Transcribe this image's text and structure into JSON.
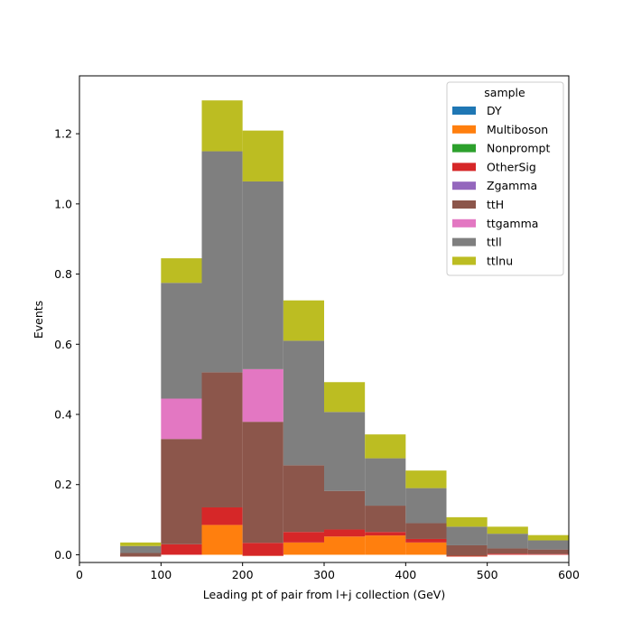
{
  "chart_data": {
    "type": "bar",
    "stacked": true,
    "histogram": true,
    "bin_edges": [
      50,
      100,
      150,
      200,
      250,
      300,
      350,
      400,
      450,
      500,
      550,
      600
    ],
    "xlabel": "Leading pt of pair from l+j collection (GeV)",
    "ylabel": "Events",
    "xlim": [
      0,
      600
    ],
    "ylim": [
      -0.022,
      1.365
    ],
    "xticks": [
      0,
      100,
      200,
      300,
      400,
      500,
      600
    ],
    "xtick_labels": [
      "0",
      "100",
      "200",
      "300",
      "400",
      "500",
      "600"
    ],
    "yticks": [
      0.0,
      0.2,
      0.4,
      0.6,
      0.8,
      1.0,
      1.2
    ],
    "ytick_labels": [
      "0.0",
      "0.2",
      "0.4",
      "0.6",
      "0.8",
      "1.0",
      "1.2"
    ],
    "grid": false,
    "legend_title": "sample",
    "legend_position": "top-right",
    "series": [
      {
        "name": "DY",
        "color": "#1f77b4",
        "values": [
          0,
          0,
          0,
          0,
          0,
          0,
          0,
          0,
          0,
          0,
          0
        ]
      },
      {
        "name": "Multiboson",
        "color": "#ff7f0e",
        "values": [
          0,
          0,
          0.085,
          -0.003,
          0.035,
          0.052,
          0.055,
          0.035,
          -0.005,
          0,
          0
        ]
      },
      {
        "name": "Nonprompt",
        "color": "#2ca02c",
        "values": [
          0,
          0,
          0,
          0,
          0,
          0,
          0,
          0,
          0,
          0,
          0
        ]
      },
      {
        "name": "OtherSig",
        "color": "#d62728",
        "values": [
          -0.005,
          0.03,
          0.05,
          0.037,
          0.03,
          0.02,
          0.01,
          0.01,
          0.002,
          0.003,
          0.002
        ]
      },
      {
        "name": "Zgamma",
        "color": "#9467bd",
        "values": [
          0,
          0,
          0,
          0,
          0,
          0,
          0,
          0,
          0,
          0,
          0
        ]
      },
      {
        "name": "ttH",
        "color": "#8c564b",
        "values": [
          0.01,
          0.3,
          0.385,
          0.345,
          0.19,
          0.11,
          0.075,
          0.045,
          0.03,
          0.015,
          0.013
        ]
      },
      {
        "name": "ttgamma",
        "color": "#e377c2",
        "values": [
          0,
          0.115,
          0,
          0.15,
          0,
          0,
          0,
          0,
          0,
          0,
          0
        ]
      },
      {
        "name": "ttll",
        "color": "#7f7f7f",
        "values": [
          0.02,
          0.33,
          0.63,
          0.535,
          0.355,
          0.225,
          0.135,
          0.1,
          0.053,
          0.042,
          0.026
        ]
      },
      {
        "name": "ttlnu",
        "color": "#bcbd22",
        "values": [
          0.01,
          0.07,
          0.145,
          0.145,
          0.115,
          0.085,
          0.068,
          0.05,
          0.027,
          0.02,
          0.015
        ]
      }
    ]
  }
}
